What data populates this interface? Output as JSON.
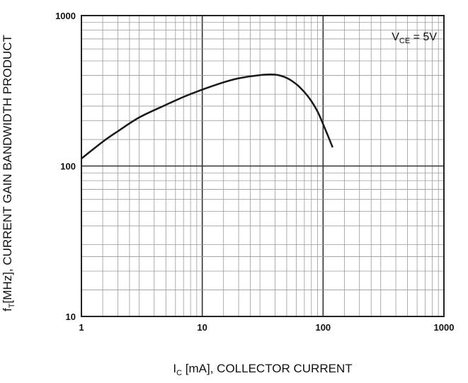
{
  "chart_data": {
    "type": "line",
    "scale": "log-log",
    "grid": true,
    "xlim": [
      1,
      1000
    ],
    "ylim": [
      10,
      1000
    ],
    "xticks": [
      "1",
      "10",
      "100",
      "1000"
    ],
    "yticks": [
      "10",
      "100",
      "1000"
    ],
    "xlabel": {
      "main": "I",
      "sub": "C",
      "rest": " [mA], COLLECTOR CURRENT"
    },
    "ylabel": {
      "main": "f",
      "sub": "T",
      "rest": "[MHz], CURRENT GAIN BANDWIDTH PRODUCT"
    },
    "annotation": {
      "main": "V",
      "sub": "CE",
      "rest": " = 5V"
    },
    "series": [
      {
        "x": [
          1,
          1.5,
          2,
          3,
          5,
          7,
          10,
          15,
          20,
          30,
          40,
          50,
          60,
          70,
          80,
          90,
          100,
          110,
          120
        ],
        "y": [
          112,
          145,
          170,
          210,
          255,
          288,
          322,
          360,
          383,
          402,
          405,
          385,
          350,
          310,
          270,
          230,
          190,
          158,
          133
        ]
      }
    ],
    "colors": {
      "line": "#1a1a1a",
      "grid": "#9a9a9a",
      "major_grid": "#333333"
    }
  }
}
